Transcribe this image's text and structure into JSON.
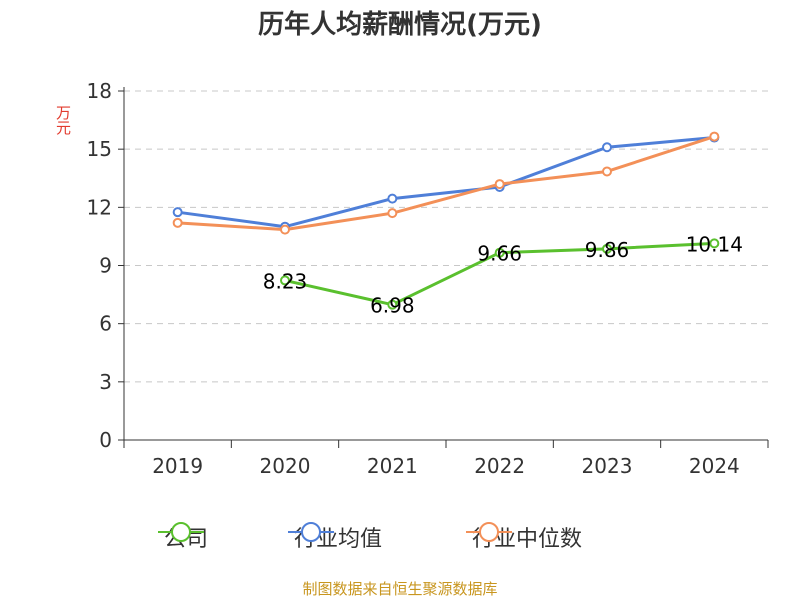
{
  "chart_data": {
    "type": "line",
    "title": "历年人均薪酬情况(万元)",
    "ylabel": "万元",
    "xlabel": "",
    "categories": [
      "2019",
      "2020",
      "2021",
      "2022",
      "2023",
      "2024"
    ],
    "ylim": [
      0,
      18
    ],
    "yticks": [
      0,
      3,
      6,
      9,
      12,
      15,
      18
    ],
    "grid": true,
    "legend_position": "bottom",
    "series": [
      {
        "name": "公司",
        "color": "#5ac02e",
        "values": [
          null,
          8.23,
          6.98,
          9.66,
          9.86,
          10.14
        ],
        "labels": [
          "",
          "8.23",
          "6.98",
          "9.66",
          "9.86",
          "10.14"
        ]
      },
      {
        "name": "行业均值",
        "color": "#4f7fd8",
        "values": [
          11.75,
          11.0,
          12.45,
          13.05,
          15.1,
          15.6
        ]
      },
      {
        "name": "行业中位数",
        "color": "#f39058",
        "values": [
          11.2,
          10.85,
          11.7,
          13.2,
          13.85,
          15.65
        ]
      }
    ]
  },
  "legend": [
    {
      "label": "公司",
      "color": "#5ac02e"
    },
    {
      "label": "行业均值",
      "color": "#4f7fd8"
    },
    {
      "label": "行业中位数",
      "color": "#f39058"
    }
  ],
  "source_note": "制图数据来自恒生聚源数据库"
}
